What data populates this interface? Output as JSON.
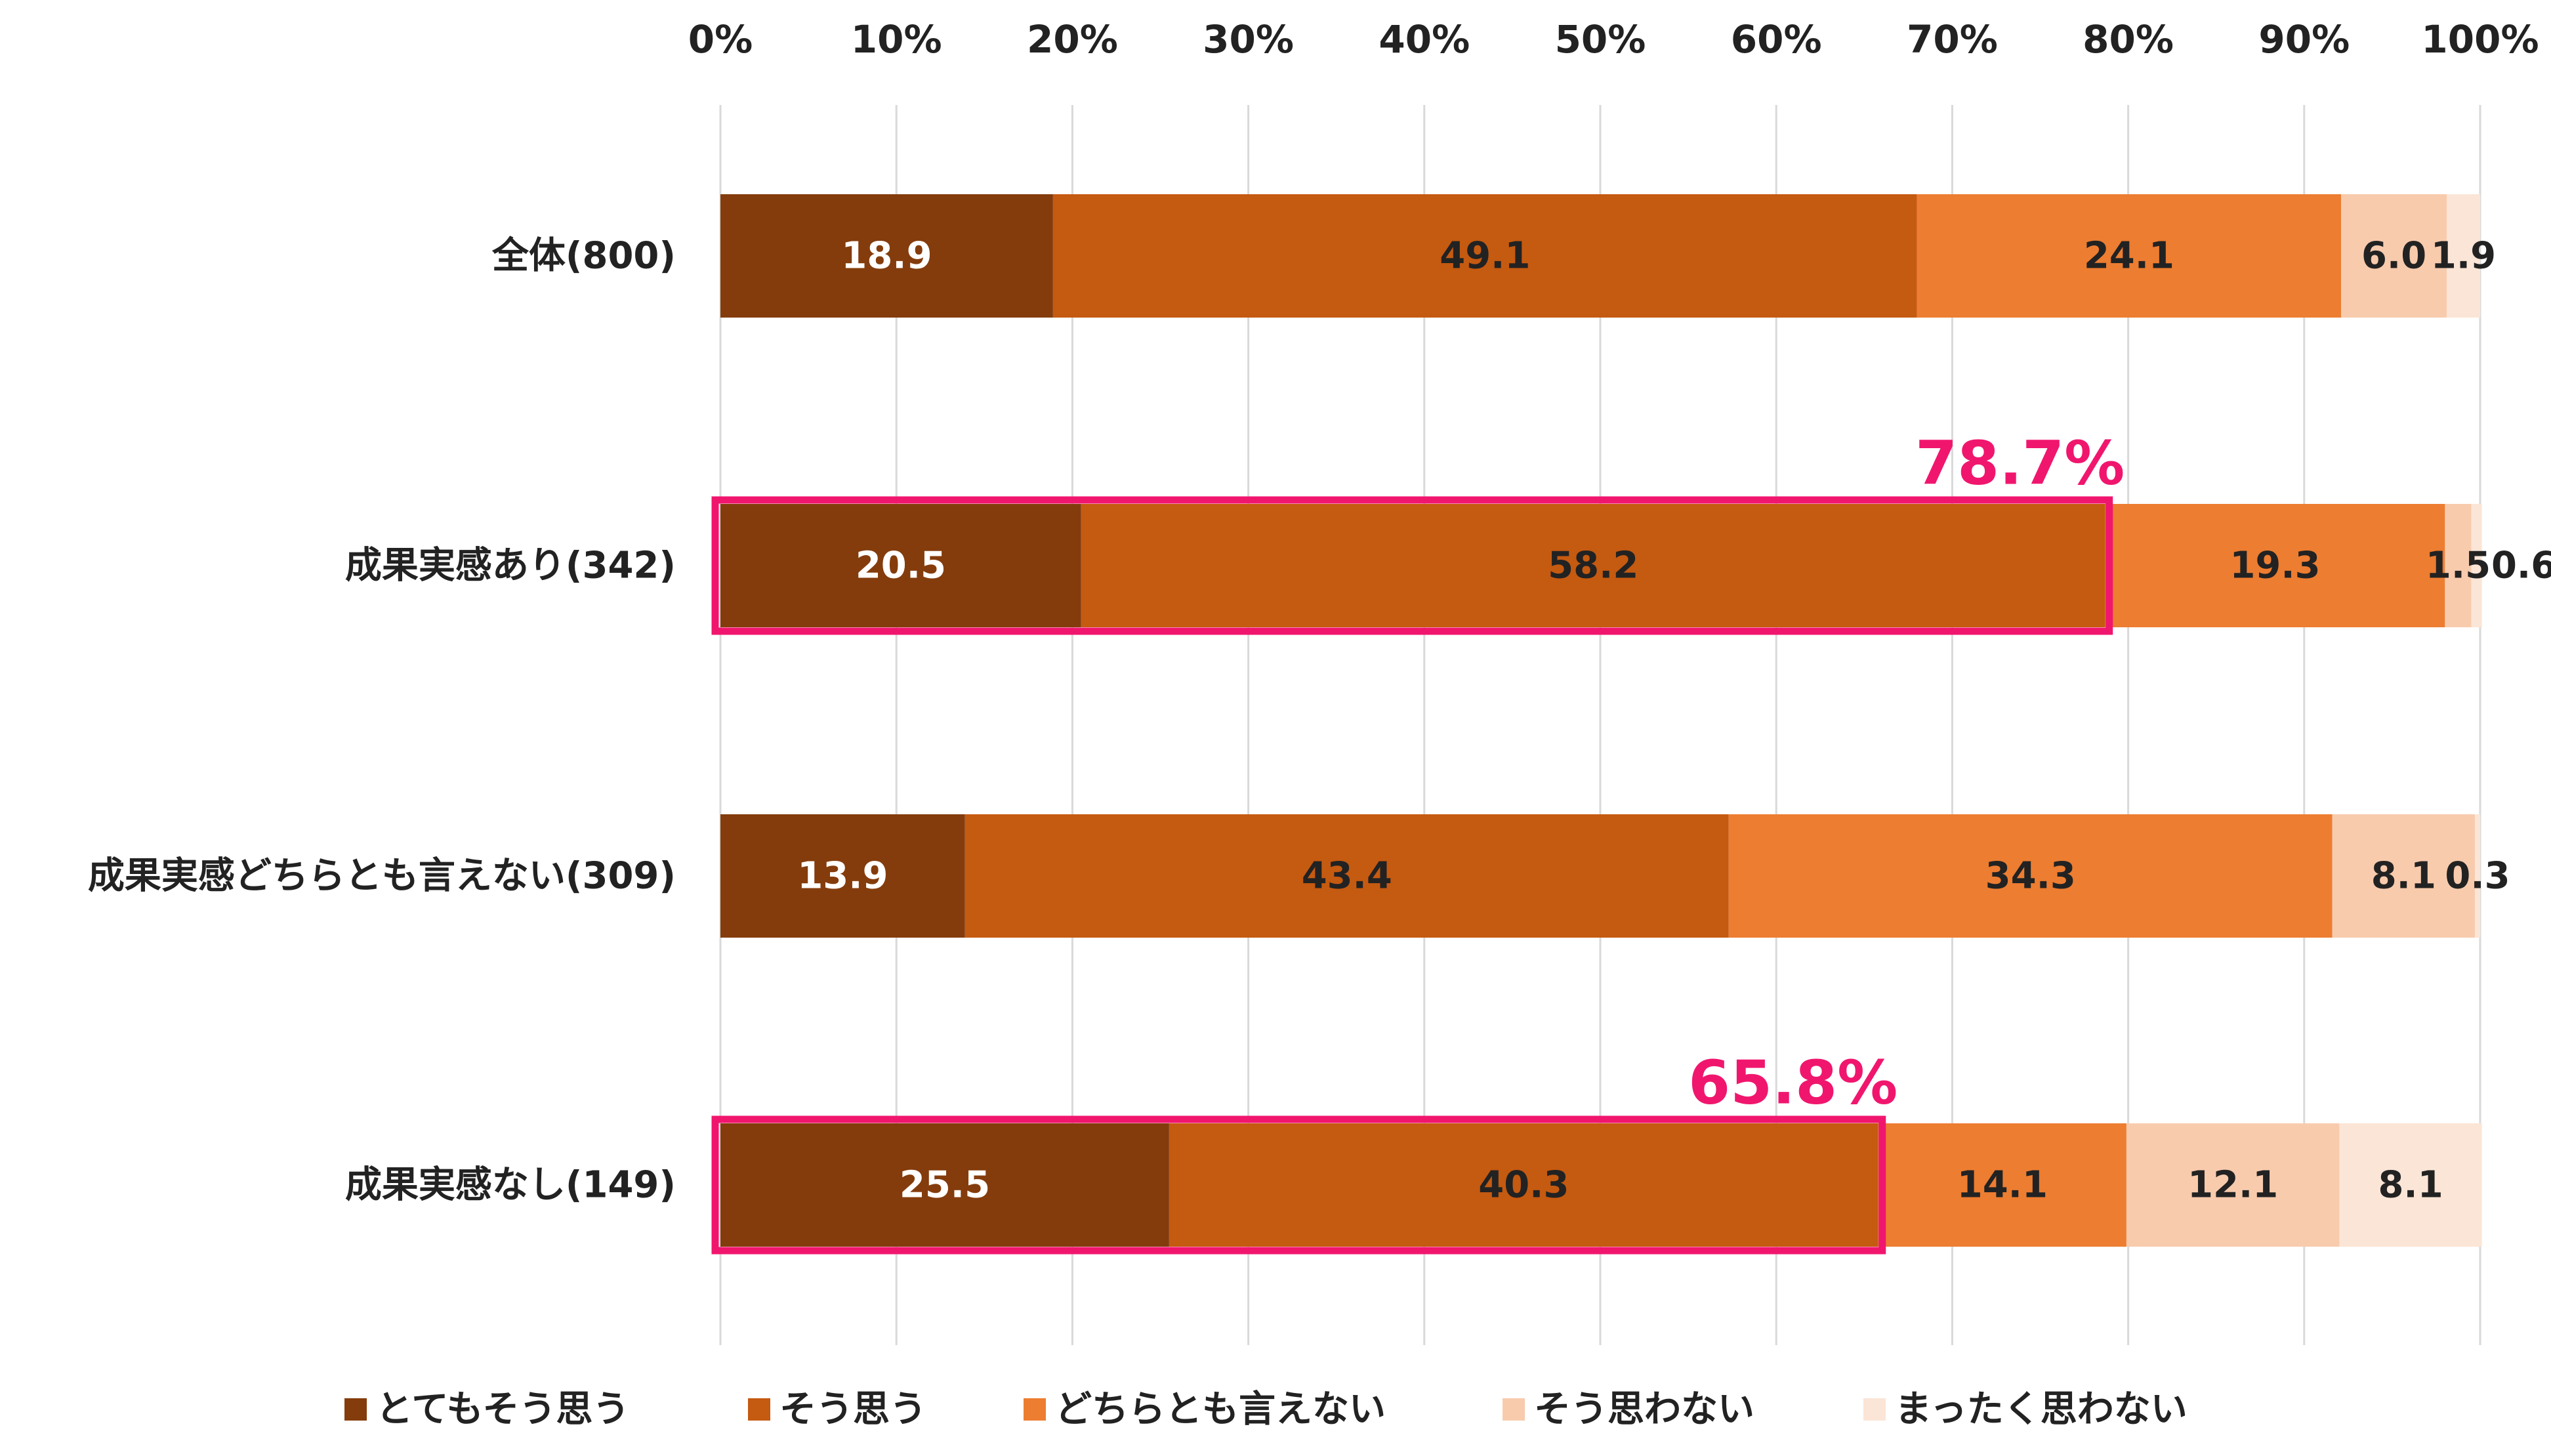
{
  "chart_data": {
    "type": "bar",
    "orientation": "horizontal",
    "stacked": true,
    "title": "",
    "xlabel": "",
    "ylabel": "",
    "xlim": [
      0,
      100
    ],
    "x_ticks": [
      "0%",
      "10%",
      "20%",
      "30%",
      "40%",
      "50%",
      "60%",
      "70%",
      "80%",
      "90%",
      "100%"
    ],
    "grid": true,
    "legend_position": "bottom",
    "categories": [
      "全体(800)",
      "成果実感あり(342)",
      "成果実感どちらとも言えない(309)",
      "成果実感なし(149)"
    ],
    "series": [
      {
        "name": "とてもそう思う",
        "color": "#843C0C",
        "values": [
          18.9,
          20.5,
          13.9,
          25.5
        ],
        "labels": [
          "18.9",
          "20.5",
          "13.9",
          "25.5"
        ]
      },
      {
        "name": "そう思う",
        "color": "#C55A11",
        "values": [
          49.1,
          58.2,
          43.4,
          40.3
        ],
        "labels": [
          "49.1",
          "58.2",
          "43.4",
          "40.3"
        ]
      },
      {
        "name": "どちらとも言えない",
        "color": "#ED7D31",
        "values": [
          24.1,
          19.3,
          34.3,
          14.1
        ],
        "labels": [
          "24.1",
          "19.3",
          "34.3",
          "14.1"
        ]
      },
      {
        "name": "そう思わない",
        "color": "#F8CBAD",
        "values": [
          6.0,
          1.5,
          8.1,
          12.1
        ],
        "labels": [
          "6.0",
          "1.5",
          "8.1",
          "12.1"
        ]
      },
      {
        "name": "まったく思わない",
        "color": "#FBE5D6",
        "values": [
          1.9,
          0.6,
          0.3,
          8.1
        ],
        "labels": [
          "1.9",
          "0.6",
          "0.3",
          "8.1"
        ]
      }
    ],
    "label_text_colors": [
      "#ffffff",
      "#222222",
      "#222222",
      "#222222",
      "#222222"
    ],
    "annotations": [
      {
        "category_index": 1,
        "value": 78.7,
        "text": "78.7%",
        "color": "#F0166E"
      },
      {
        "category_index": 3,
        "value": 65.8,
        "text": "65.8%",
        "color": "#F0166E"
      }
    ],
    "colors": {
      "grid": "#D9D9D9",
      "tick_text": "#222222",
      "highlight": "#F0166E"
    }
  }
}
